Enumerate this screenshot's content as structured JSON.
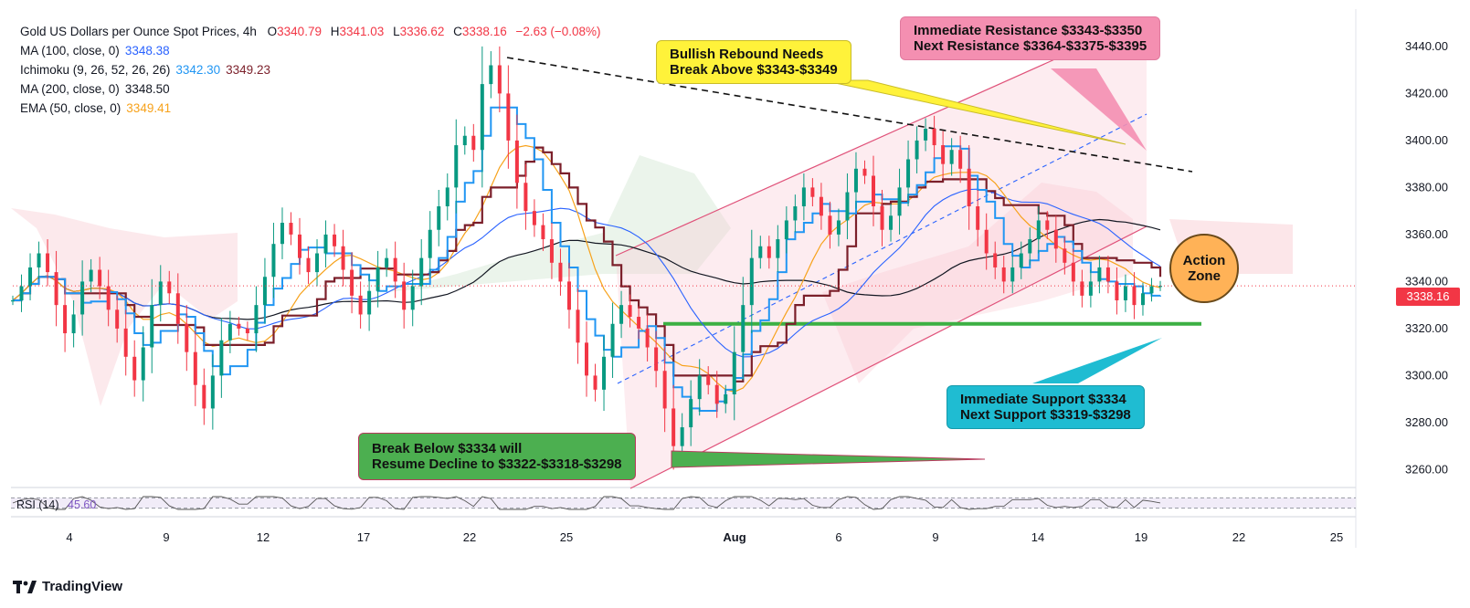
{
  "legend": {
    "title": "Gold US Dollars per Ounce Spot Prices, 4h",
    "ohlc": {
      "o_label": "O",
      "o": "3340.79",
      "h_label": "H",
      "h": "3341.03",
      "l_label": "L",
      "l": "3336.62",
      "c_label": "C",
      "c": "3338.16",
      "chg": "−2.63 (−0.08%)"
    },
    "ma100": {
      "label": "MA (100, close, 0)",
      "value": "3348.38"
    },
    "ichimoku": {
      "label": "Ichimoku (9, 26, 52, 26, 26)",
      "value1": "3342.30",
      "value2": "3349.23"
    },
    "ma200": {
      "label": "MA (200, close, 0)",
      "value": "3348.50"
    },
    "ema50": {
      "label": "EMA (50, close, 0)",
      "value": "3349.41"
    }
  },
  "annotations": {
    "resistance": {
      "line1": "Immediate Resistance $3343-$3350",
      "line2": "Next Resistance $3364-$3375-$3395"
    },
    "bullish": {
      "line1": "Bullish Rebound Needs",
      "line2": "Break Above $3343-$3349"
    },
    "action_zone": {
      "line1": "Action",
      "line2": "Zone"
    },
    "support": {
      "line1": "Immediate Support $3334",
      "line2": "Next Support $3319-$3298"
    },
    "break_below": {
      "line1": "Break Below $3334 will",
      "line2": "Resume Decline to $3322-$3318-$3298"
    }
  },
  "rsi": {
    "label": "RSI (14)",
    "value": "45.60"
  },
  "last_price": "3338.16",
  "brand": "TradingView",
  "colors": {
    "up": "#089981",
    "down": "#f23645",
    "ma100": "#2962ff",
    "ma200": "#131722",
    "ema50": "#f7a21b",
    "kijun": "#7b1f2a",
    "tenkan": "#2196f3"
  },
  "chart_data": {
    "type": "candlestick",
    "title": "Gold US Dollars per Ounce Spot Prices, 4h",
    "y_axis": {
      "ticks": [
        3260,
        3280,
        3300,
        3320,
        3340,
        3360,
        3380,
        3400,
        3420,
        3440
      ],
      "range": [
        3252,
        3452
      ]
    },
    "x_axis": {
      "ticks": [
        "4",
        "9",
        "12",
        "17",
        "22",
        "25",
        "Aug",
        "6",
        "9",
        "14",
        "19",
        "22",
        "25"
      ]
    },
    "closes": [
      3332,
      3338,
      3346,
      3352,
      3344,
      3330,
      3318,
      3326,
      3340,
      3345,
      3338,
      3328,
      3320,
      3308,
      3298,
      3312,
      3330,
      3340,
      3335,
      3322,
      3310,
      3296,
      3286,
      3300,
      3315,
      3322,
      3320,
      3318,
      3330,
      3342,
      3356,
      3365,
      3360,
      3350,
      3344,
      3352,
      3360,
      3355,
      3345,
      3334,
      3326,
      3336,
      3346,
      3350,
      3340,
      3328,
      3338,
      3350,
      3362,
      3372,
      3380,
      3398,
      3402,
      3396,
      3424,
      3432,
      3420,
      3400,
      3382,
      3370,
      3364,
      3358,
      3348,
      3340,
      3328,
      3314,
      3300,
      3294,
      3308,
      3322,
      3330,
      3325,
      3320,
      3312,
      3302,
      3286,
      3270,
      3278,
      3290,
      3300,
      3296,
      3288,
      3292,
      3310,
      3330,
      3350,
      3355,
      3350,
      3358,
      3366,
      3372,
      3380,
      3376,
      3368,
      3360,
      3366,
      3378,
      3388,
      3385,
      3372,
      3362,
      3368,
      3380,
      3392,
      3400,
      3405,
      3398,
      3390,
      3396,
      3388,
      3372,
      3362,
      3352,
      3346,
      3340,
      3346,
      3352,
      3358,
      3366,
      3362,
      3354,
      3348,
      3340,
      3334,
      3340,
      3346,
      3340,
      3332,
      3338,
      3330,
      3335,
      3338,
      3338.16
    ],
    "last_close": 3338.16,
    "horizontal_support": 3322,
    "rsi": {
      "value": 45.6,
      "upper": 70,
      "lower": 30
    }
  }
}
